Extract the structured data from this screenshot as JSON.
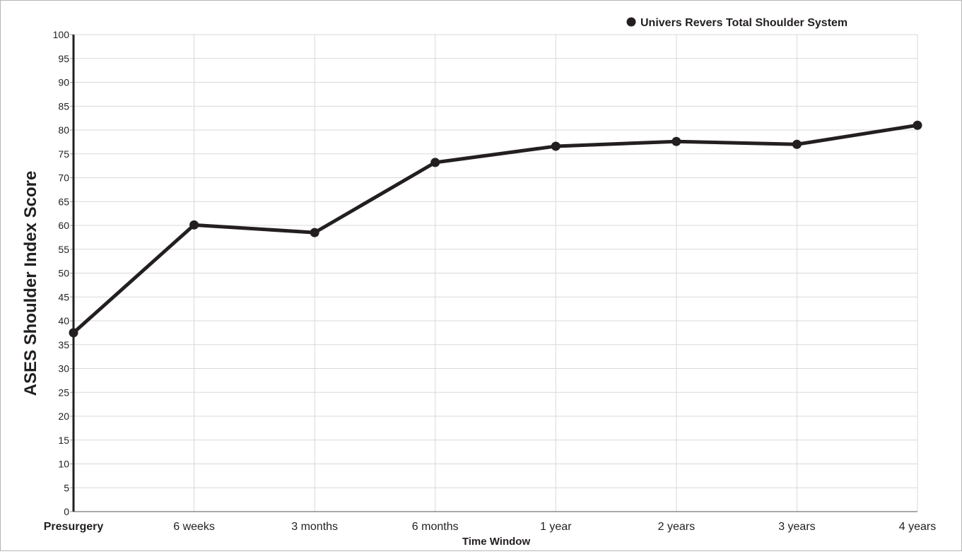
{
  "chart_data": {
    "type": "line",
    "title": "",
    "xlabel": "Time Window",
    "ylabel": "ASES Shoulder Index Score",
    "categories": [
      "Presurgery",
      "6 weeks",
      "3 months",
      "6 months",
      "1 year",
      "2 years",
      "3 years",
      "4 years"
    ],
    "bold_categories": [
      "Presurgery"
    ],
    "ylim": [
      0,
      100
    ],
    "yticks": [
      0,
      5,
      10,
      15,
      20,
      25,
      30,
      35,
      40,
      45,
      50,
      55,
      60,
      65,
      70,
      75,
      80,
      85,
      90,
      95,
      100
    ],
    "grid": true,
    "legend_position": "top-right",
    "series": [
      {
        "name": "Univers Revers Total Shoulder System",
        "values": [
          37.5,
          60.1,
          58.5,
          73.2,
          76.6,
          77.6,
          77.0,
          81.0
        ],
        "color": "#231f20"
      }
    ],
    "colors": {
      "grid": "#d9d9d9",
      "axis": "#231f20",
      "text": "#231f20"
    }
  }
}
